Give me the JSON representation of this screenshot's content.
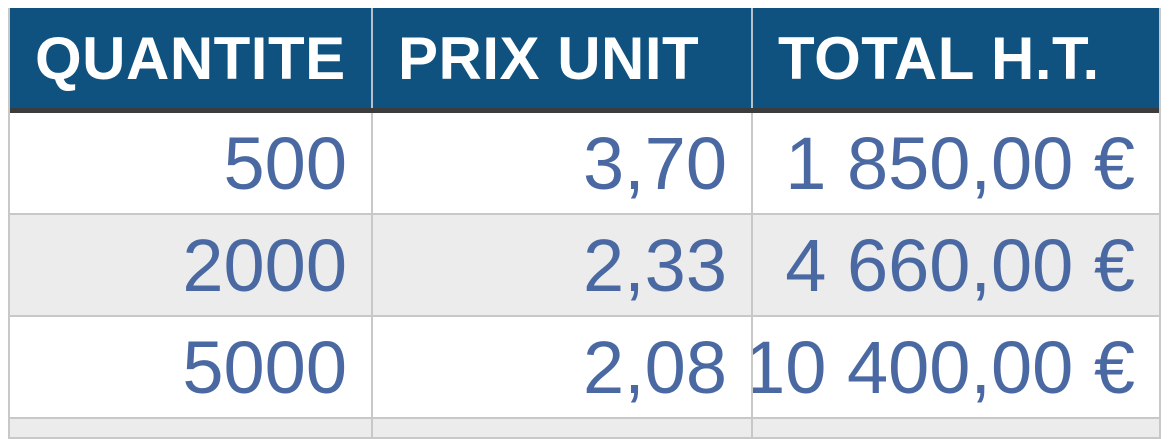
{
  "table": {
    "columns": [
      "QUANTITE",
      "PRIX UNIT",
      "TOTAL H.T."
    ],
    "rows": [
      [
        "500",
        "3,70",
        "1 850,00 €"
      ],
      [
        "2000",
        "2,33",
        "4 660,00 €"
      ],
      [
        "5000",
        "2,08",
        "10 400,00 €"
      ]
    ],
    "currency_symbol": "€"
  },
  "chart_data": {
    "type": "table",
    "columns": [
      "QUANTITE",
      "PRIX UNIT",
      "TOTAL H.T."
    ],
    "rows": [
      [
        "500",
        "3,70",
        "1 850,00 €"
      ],
      [
        "2000",
        "2,33",
        "4 660,00 €"
      ],
      [
        "5000",
        "2,08",
        "10 400,00 €"
      ]
    ],
    "quantities": [
      500,
      2000,
      5000
    ],
    "unit_prices": [
      3.7,
      2.33,
      2.08
    ],
    "totals_eur": [
      1850.0,
      4660.0,
      10400.0
    ]
  },
  "colors": {
    "header_bg": "#0f5280",
    "header_text": "#ffffff",
    "header_underline": "#3c3c3c",
    "body_text": "#4a69a2",
    "row_alt_bg": "#ececec",
    "grid_line": "#c8c8c8"
  }
}
